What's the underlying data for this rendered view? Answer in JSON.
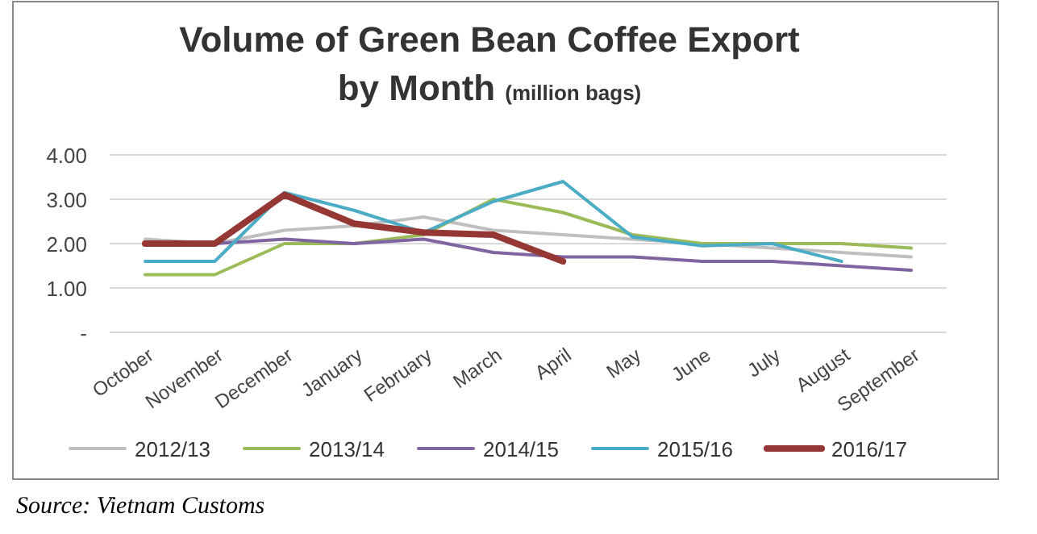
{
  "chart_data": {
    "type": "line",
    "title": "Volume of Green Bean Coffee Export by Month",
    "subtitle": "(million bags)",
    "annotations": [
      "Source: Vietnam Customs"
    ],
    "categories": [
      "October",
      "November",
      "December",
      "January",
      "February",
      "March",
      "April",
      "May",
      "June",
      "July",
      "August",
      "September"
    ],
    "ylim": [
      0,
      4
    ],
    "yticks": [
      {
        "value": 0,
        "label": "-"
      },
      {
        "value": 1,
        "label": "1.00"
      },
      {
        "value": 2,
        "label": "2.00"
      },
      {
        "value": 3,
        "label": "3.00"
      },
      {
        "value": 4,
        "label": "4.00"
      }
    ],
    "grid": "y",
    "legend": "bottom",
    "line_style": "solid",
    "marker": "none",
    "series": [
      {
        "name": "2012/13",
        "color": "#bfbfbf",
        "values": [
          2.1,
          2.0,
          2.3,
          2.4,
          2.6,
          2.3,
          2.2,
          2.1,
          2.0,
          1.9,
          1.8,
          1.7
        ]
      },
      {
        "name": "2013/14",
        "color": "#9bbb59",
        "values": [
          1.3,
          1.3,
          2.0,
          2.0,
          2.2,
          3.0,
          2.7,
          2.2,
          2.0,
          2.0,
          2.0,
          1.9
        ]
      },
      {
        "name": "2014/15",
        "color": "#8064a2",
        "values": [
          2.0,
          2.0,
          2.1,
          2.0,
          2.1,
          1.8,
          1.7,
          1.7,
          1.6,
          1.6,
          1.5,
          1.4
        ]
      },
      {
        "name": "2015/16",
        "color": "#4bacc6",
        "values": [
          1.6,
          1.6,
          3.15,
          2.75,
          2.25,
          2.95,
          3.4,
          2.15,
          1.95,
          2.0,
          1.6,
          null
        ]
      },
      {
        "name": "2016/17",
        "color": "#953735",
        "values": [
          2.0,
          2.0,
          3.1,
          2.45,
          2.25,
          2.2,
          1.6,
          null,
          null,
          null,
          null,
          null
        ]
      }
    ]
  }
}
